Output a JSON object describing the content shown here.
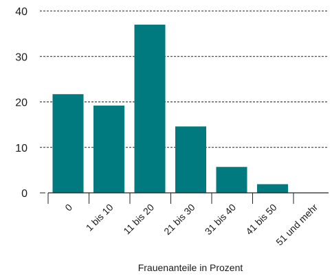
{
  "chart_data": {
    "type": "bar",
    "categories": [
      "0",
      "1 bis 10",
      "11 bis 20",
      "21 bis 30",
      "31 bis 40",
      "41 bis 50",
      "51 und mehr"
    ],
    "values": [
      21.7,
      19.2,
      37.0,
      14.6,
      5.7,
      1.9,
      0
    ],
    "xlabel": "Frauenanteile in Prozent",
    "ylabel": "",
    "ylim": [
      0,
      40
    ],
    "yticks": [
      "0",
      "10",
      "20",
      "30",
      "40"
    ],
    "grid": "horizontal-dashed",
    "bar_color": "#007a7f"
  }
}
